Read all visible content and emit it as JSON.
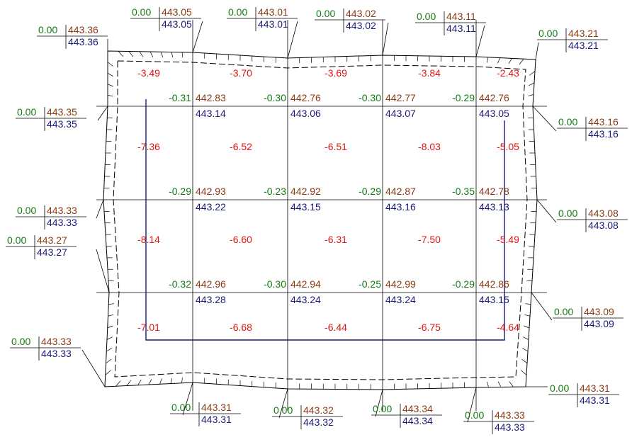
{
  "colors": {
    "work": "#127a12",
    "design": "#8b3a14",
    "natural": "#1a1a78",
    "volume": "#e01414",
    "line": "#000000",
    "zeroLine": "#1a1a78"
  },
  "perimeter": [
    {
      "work": "0.00",
      "design": "443.36",
      "natural": "443.36"
    },
    {
      "work": "0.00",
      "design": "443.05",
      "natural": "443.05"
    },
    {
      "work": "0.00",
      "design": "443.01",
      "natural": "443.01"
    },
    {
      "work": "0.00",
      "design": "443.02",
      "natural": "443.02"
    },
    {
      "work": "0.00",
      "design": "443.11",
      "natural": "443.11"
    },
    {
      "work": "0.00",
      "design": "443.21",
      "natural": "443.21"
    },
    {
      "work": "0.00",
      "design": "443.35",
      "natural": "443.35"
    },
    {
      "work": "0.00",
      "design": "443.16",
      "natural": "443.16"
    },
    {
      "work": "0.00",
      "design": "443.33",
      "natural": "443.33"
    },
    {
      "work": "0.00",
      "design": "443.08",
      "natural": "443.08"
    },
    {
      "work": "0.00",
      "design": "443.27",
      "natural": "443.27"
    },
    {
      "work": "0.00",
      "design": "443.09",
      "natural": "443.09"
    },
    {
      "work": "0.00",
      "design": "443.33",
      "natural": "443.33"
    },
    {
      "work": "0.00",
      "design": "443.31",
      "natural": "443.31"
    },
    {
      "work": "0.00",
      "design": "443.31",
      "natural": "443.31"
    },
    {
      "work": "0.00",
      "design": "443.32",
      "natural": "443.32"
    },
    {
      "work": "0.00",
      "design": "443.34",
      "natural": "443.34"
    },
    {
      "work": "0.00",
      "design": "443.33",
      "natural": "443.33"
    }
  ],
  "inner": [
    {
      "work": "-0.31",
      "design": "442.83",
      "natural": "443.14"
    },
    {
      "work": "-0.30",
      "design": "442.76",
      "natural": "443.06"
    },
    {
      "work": "-0.30",
      "design": "442.77",
      "natural": "443.07"
    },
    {
      "work": "-0.29",
      "design": "442.76",
      "natural": "443.05"
    },
    {
      "work": "-0.29",
      "design": "442.93",
      "natural": "443.22"
    },
    {
      "work": "-0.23",
      "design": "442.92",
      "natural": "443.15"
    },
    {
      "work": "-0.29",
      "design": "442.87",
      "natural": "443.16"
    },
    {
      "work": "-0.35",
      "design": "442.78",
      "natural": "443.13"
    },
    {
      "work": "-0.32",
      "design": "442.96",
      "natural": "443.28"
    },
    {
      "work": "-0.30",
      "design": "442.94",
      "natural": "443.24"
    },
    {
      "work": "-0.25",
      "design": "442.99",
      "natural": "443.24"
    },
    {
      "work": "-0.29",
      "design": "442.86",
      "natural": "443.15"
    }
  ],
  "volumes": [
    "-3.49",
    "-3.70",
    "-3.69",
    "-3.84",
    "-2.43",
    "-7.36",
    "-6.52",
    "-6.51",
    "-8.03",
    "-5.05",
    "-8.14",
    "-6.60",
    "-6.31",
    "-7.50",
    "-5.49",
    "-7.01",
    "-6.68",
    "-6.44",
    "-6.75",
    "-4.64"
  ]
}
